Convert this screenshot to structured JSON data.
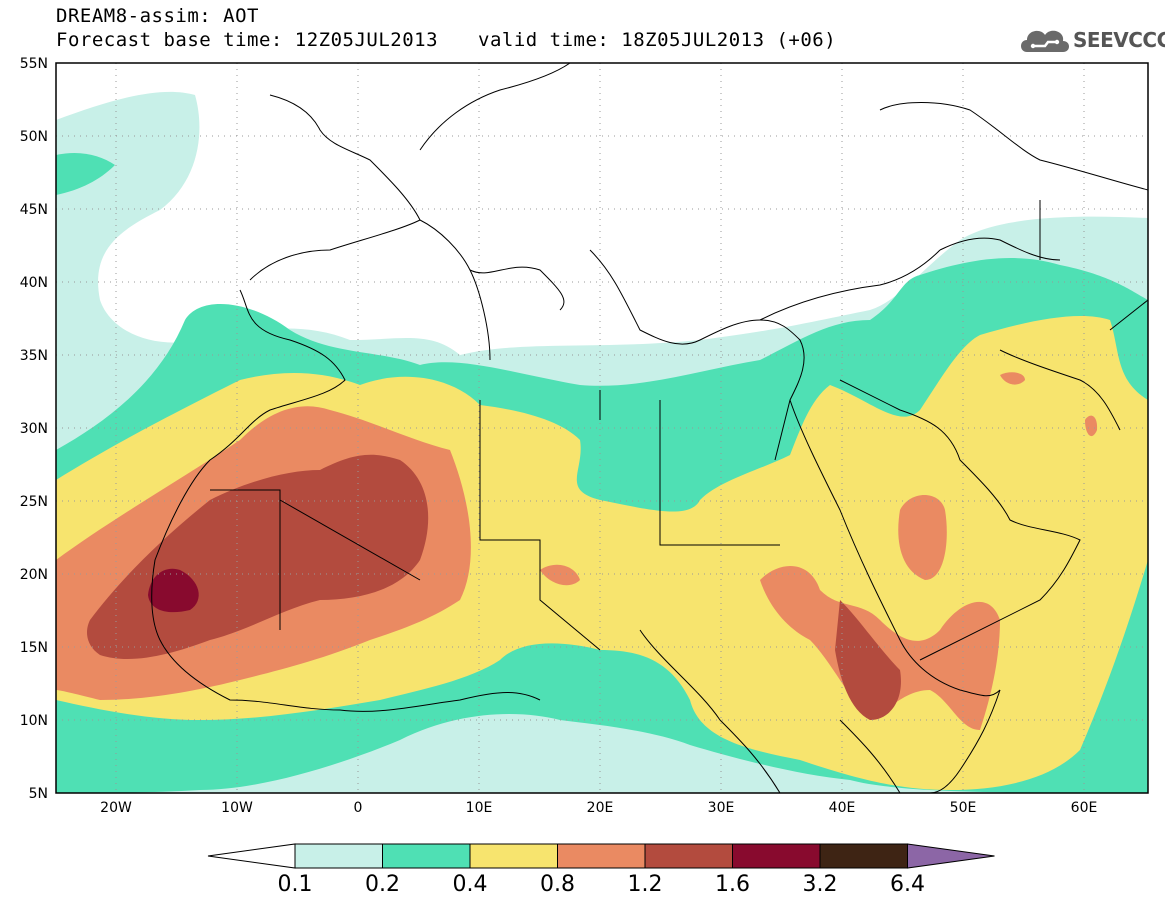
{
  "header": {
    "title_line1": "DREAM8-assim: AOT",
    "title_line2": "Forecast base time: 12Z05JUL2013",
    "valid_time": "valid time: 18Z05JUL2013 (+06)",
    "logo_text": "SEEVCCC"
  },
  "axes": {
    "lat_labels": [
      "55N",
      "50N",
      "45N",
      "40N",
      "35N",
      "30N",
      "25N",
      "20N",
      "15N",
      "10N",
      "5N"
    ],
    "lon_labels": [
      "20W",
      "10W",
      "0",
      "10E",
      "20E",
      "30E",
      "40E",
      "50E",
      "60E"
    ]
  },
  "colorbar": {
    "colors": [
      "#ffffff",
      "#c8f0e8",
      "#4fe0b4",
      "#f7e46e",
      "#ea8a62",
      "#b34b3e",
      "#880a2e",
      "#3e2414",
      "#8c66a6"
    ],
    "labels": [
      "0.1",
      "0.2",
      "0.4",
      "0.8",
      "1.2",
      "1.6",
      "3.2",
      "6.4"
    ]
  },
  "palette": {
    "bin_0_1_0_2": "#c8f0e8",
    "bin_0_2_0_4": "#4fe0b4",
    "bin_0_4_0_8": "#f7e46e",
    "bin_0_8_1_2": "#ea8a62",
    "bin_1_2_1_6": "#b34b3e",
    "bin_1_6_3_2": "#880a2e"
  }
}
